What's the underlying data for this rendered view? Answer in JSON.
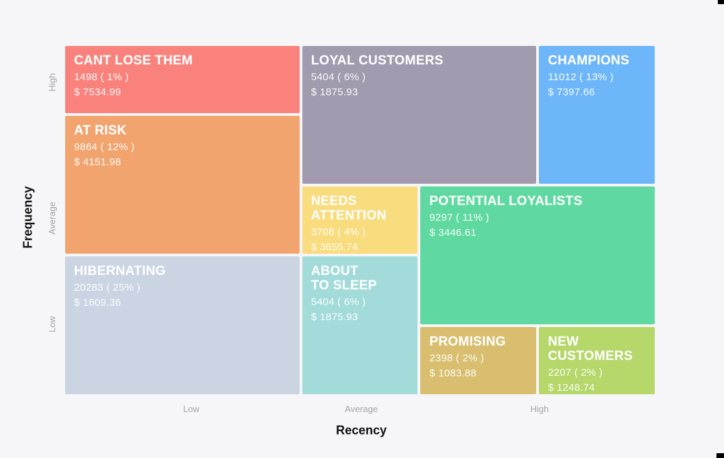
{
  "chart_data": {
    "type": "treemap",
    "subtype": "rfm-segment-grid",
    "title": "",
    "xlabel": "Recency",
    "ylabel": "Frequency",
    "x_ticks": [
      "Low",
      "Average",
      "High"
    ],
    "y_ticks": [
      "High",
      "Average",
      "Low"
    ],
    "grid": {
      "columns": 5,
      "rows": 5
    },
    "legend_position": "none",
    "background_color": "#f6f6f8",
    "tick_color": "#a3a3a3",
    "axis_title_color": "#111111",
    "segments": [
      {
        "name": "CANT LOSE THEM",
        "title": "CANT LOSE THEM",
        "count": 1498,
        "percent": 1,
        "count_label": "1498 ( 1% )",
        "monetary": 7534.99,
        "monetary_label": "$ 7534.99",
        "color": "#f9837c",
        "recency": "Low",
        "frequency": "High"
      },
      {
        "name": "LOYAL CUSTOMERS",
        "title": "LOYAL CUSTOMERS",
        "count": 5404,
        "percent": 6,
        "count_label": "5404 ( 6% )",
        "monetary": 1875.93,
        "monetary_label": "$ 1875.93",
        "color": "#a29aae",
        "recency": "Average",
        "frequency": "High"
      },
      {
        "name": "CHAMPIONS",
        "title": "CHAMPIONS",
        "count": 11012,
        "percent": 13,
        "count_label": "11012 ( 13% )",
        "monetary": 7397.66,
        "monetary_label": "$ 7397.66",
        "color": "#6db6f9",
        "recency": "High",
        "frequency": "High"
      },
      {
        "name": "AT RISK",
        "title": "AT RISK",
        "count": 9864,
        "percent": 12,
        "count_label": "9864 ( 12% )",
        "monetary": 4151.98,
        "monetary_label": "$ 4151.98",
        "color": "#f2a46f",
        "recency": "Low",
        "frequency": "Average"
      },
      {
        "name": "NEEDS ATTENTION",
        "title": "NEEDS\nATTENTION",
        "count": 3708,
        "percent": 4,
        "count_label": "3708 ( 4% )",
        "monetary": 3655.74,
        "monetary_label": "$ 3655.74",
        "color": "#f8dc7e",
        "recency": "Average",
        "frequency": "Average"
      },
      {
        "name": "POTENTIAL LOYALISTS",
        "title": "POTENTIAL LOYALISTS",
        "count": 9297,
        "percent": 11,
        "count_label": "9297 ( 11% )",
        "monetary": 3446.61,
        "monetary_label": "$ 3446.61",
        "color": "#5fd9a1",
        "recency": "High",
        "frequency": "Average"
      },
      {
        "name": "HIBERNATING",
        "title": "HIBERNATING",
        "count": 20283,
        "percent": 25,
        "count_label": "20283 ( 25% )",
        "monetary": 1609.36,
        "monetary_label": "$ 1609.36",
        "color": "#cad4e3",
        "recency": "Low",
        "frequency": "Low"
      },
      {
        "name": "ABOUT TO SLEEP",
        "title": "ABOUT\nTO SLEEP",
        "count": 5404,
        "percent": 6,
        "count_label": "5404 ( 6% )",
        "monetary": 1875.93,
        "monetary_label": "$ 1875.93",
        "color": "#a2dbda",
        "recency": "Average",
        "frequency": "Low"
      },
      {
        "name": "PROMISING",
        "title": "PROMISING",
        "count": 2398,
        "percent": 2,
        "count_label": "2398 ( 2% )",
        "monetary": 1083.88,
        "monetary_label": "$ 1083.88",
        "color": "#d8be6e",
        "recency": "High",
        "frequency": "Low"
      },
      {
        "name": "NEW CUSTOMERS",
        "title": "NEW\nCUSTOMERS",
        "count": 2207,
        "percent": 2,
        "count_label": "2207 ( 2% )",
        "monetary": 1248.74,
        "monetary_label": "$ 1248.74",
        "color": "#b6d76a",
        "recency": "High",
        "frequency": "Low"
      }
    ]
  }
}
